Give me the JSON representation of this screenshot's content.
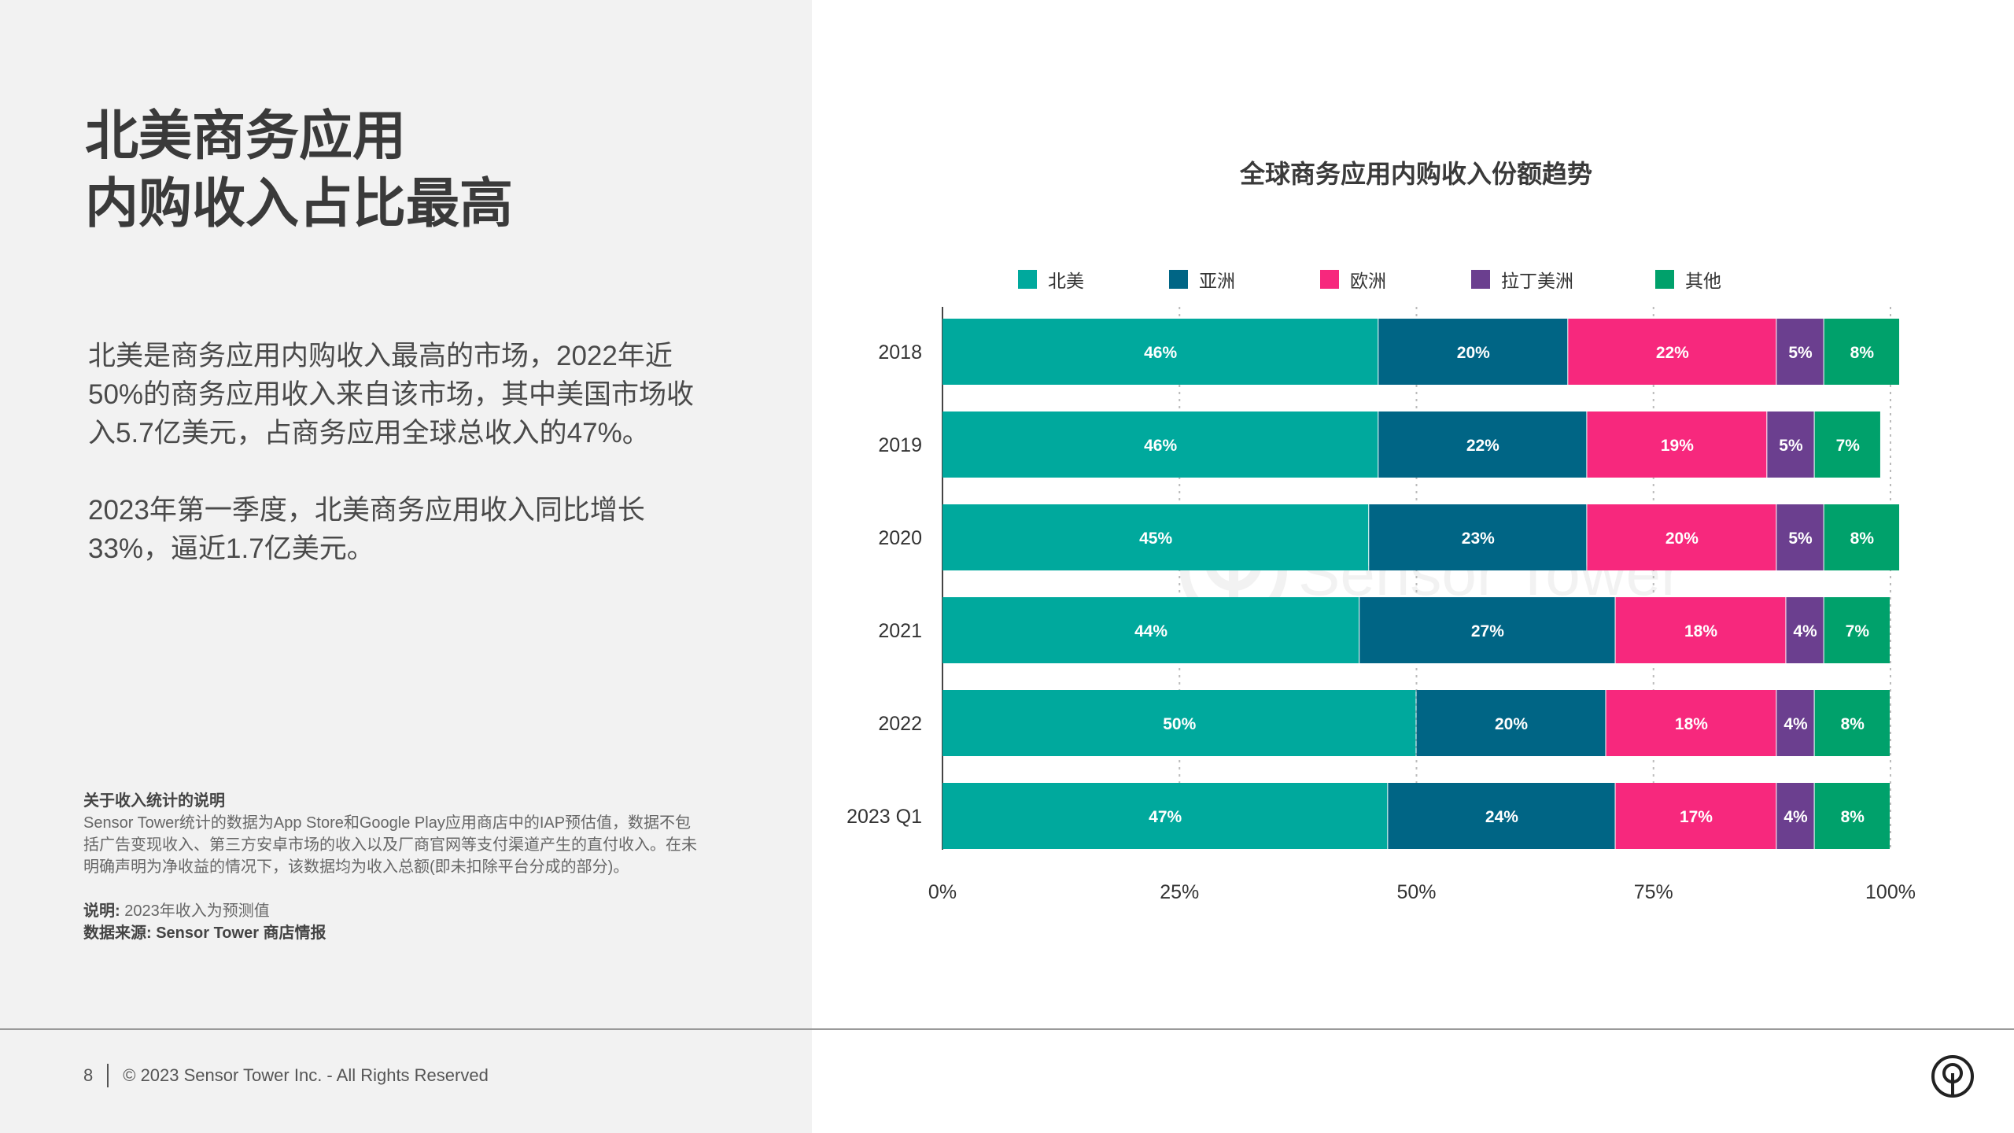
{
  "slide": {
    "headline_line1": "北美商务应用",
    "headline_line2": "内购收入占比最高",
    "paragraph1": "北美是商务应用内购收入最高的市场，2022年近50%的商务应用收入来自该市场，其中美国市场收入5.7亿美元，占商务应用全球总收入的47%。",
    "paragraph2": "2023年第一季度，北美商务应用收入同比增长33%，逼近1.7亿美元。",
    "note_title": "关于收入统计的说明",
    "note_body": "Sensor Tower统计的数据为App Store和Google Play应用商店中的IAP预估值，数据不包括广告变现收入、第三方安卓市场的收入以及厂商官网等支付渠道产生的直付收入。在未明确声明为净收益的情况下，该数据均为收入总额(即未扣除平台分成的部分)。",
    "explain_label": "说明:",
    "explain_text": "2023年收入为预测值",
    "source_text": "数据来源: Sensor Tower 商店情报",
    "page_number": "8",
    "copyright": "© 2023 Sensor Tower Inc. - All Rights Reserved",
    "watermark_text": "Sensor Tower"
  },
  "colors": {
    "north_america": "#00a99d",
    "asia": "#006585",
    "europe": "#f7287d",
    "latin_america": "#6b3f8f",
    "other": "#00a16b"
  },
  "icons": {
    "logo": "sensor-tower-logo-icon"
  },
  "chart_data": {
    "type": "bar",
    "orientation": "horizontal",
    "stacked": true,
    "title": "全球商务应用内购收入份额趋势",
    "categories": [
      "2018",
      "2019",
      "2020",
      "2021",
      "2022",
      "2023 Q1"
    ],
    "series": [
      {
        "name": "北美",
        "color": "#00a99d",
        "values": [
          46,
          46,
          45,
          44,
          50,
          47
        ]
      },
      {
        "name": "亚洲",
        "color": "#006585",
        "values": [
          20,
          22,
          23,
          27,
          20,
          24
        ]
      },
      {
        "name": "欧洲",
        "color": "#f7287d",
        "values": [
          22,
          19,
          20,
          18,
          18,
          17
        ]
      },
      {
        "name": "拉丁美洲",
        "color": "#6b3f8f",
        "values": [
          5,
          5,
          5,
          4,
          4,
          4
        ]
      },
      {
        "name": "其他",
        "color": "#00a16b",
        "values": [
          8,
          7,
          8,
          7,
          8,
          8
        ]
      }
    ],
    "x_ticks": [
      "0%",
      "25%",
      "50%",
      "75%",
      "100%"
    ],
    "xlim": [
      0,
      100
    ],
    "grid": "vertical dotted",
    "legend_position": "top"
  }
}
